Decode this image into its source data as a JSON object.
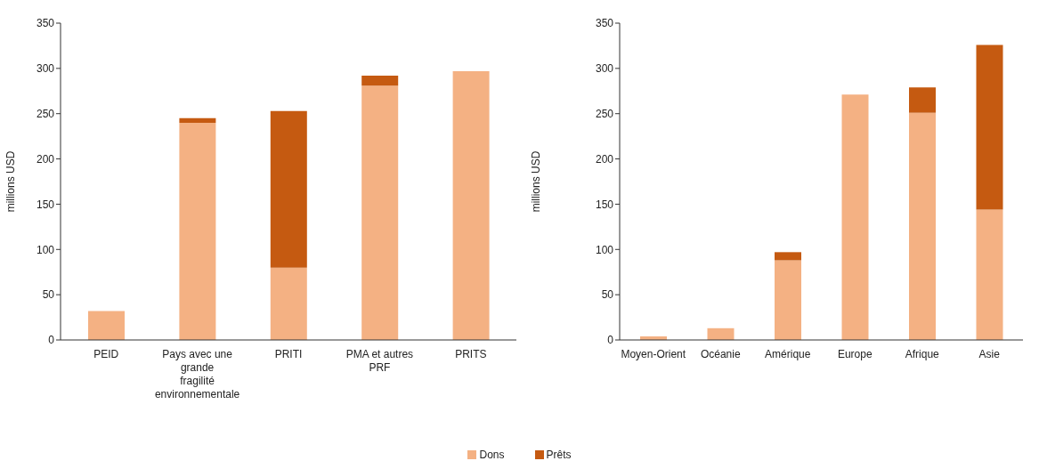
{
  "chart_data": [
    {
      "type": "bar",
      "stacked": true,
      "ylabel": "millions USD",
      "categories": [
        "PEID",
        "Pays avec une grande fragilité environnementale",
        "PRITI",
        "PMA et autres PRF",
        "PRITS"
      ],
      "series": [
        {
          "name": "Dons",
          "color": "#f4b183",
          "values": [
            32,
            240,
            80,
            281,
            297
          ]
        },
        {
          "name": "Prêts",
          "color": "#c55a11",
          "values": [
            0,
            5,
            173,
            11,
            0
          ]
        }
      ],
      "ylim": [
        0,
        350
      ],
      "yticks": [
        0,
        50,
        100,
        150,
        200,
        250,
        300,
        350
      ],
      "grid": false,
      "legend": "bottom"
    },
    {
      "type": "bar",
      "stacked": true,
      "ylabel": "millions USD",
      "categories": [
        "Moyen-Orient",
        "Océanie",
        "Amérique",
        "Europe",
        "Afrique",
        "Asie"
      ],
      "series": [
        {
          "name": "Dons",
          "color": "#f4b183",
          "values": [
            4,
            13,
            88,
            271,
            251,
            144
          ]
        },
        {
          "name": "Prêts",
          "color": "#c55a11",
          "values": [
            0,
            0,
            9,
            0,
            28,
            182
          ]
        }
      ],
      "ylim": [
        0,
        350
      ],
      "yticks": [
        0,
        50,
        100,
        150,
        200,
        250,
        300,
        350
      ],
      "grid": false,
      "legend": "bottom"
    }
  ]
}
